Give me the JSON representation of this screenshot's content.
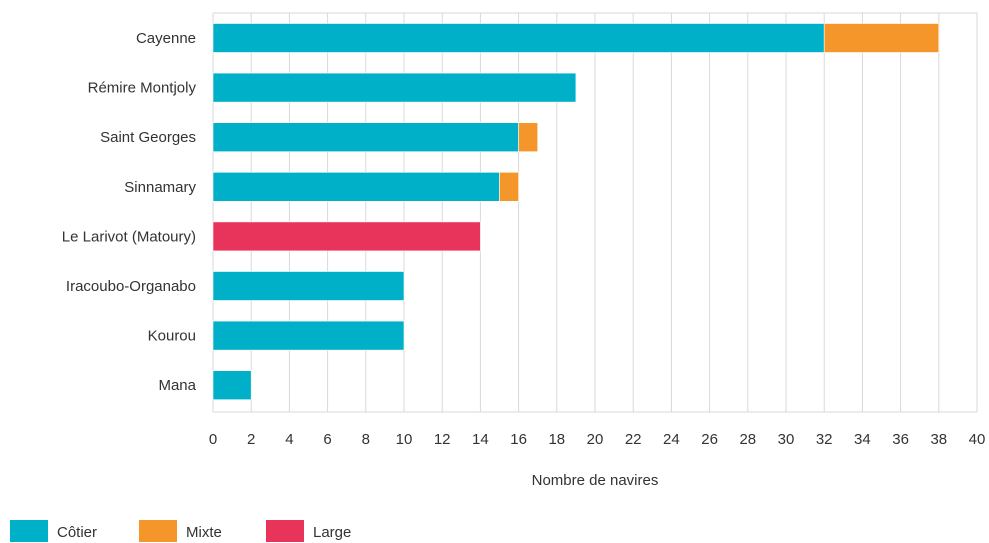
{
  "chart_data": {
    "type": "bar",
    "orientation": "horizontal",
    "stacked": true,
    "categories": [
      "Cayenne",
      "Rémire Montjoly",
      "Saint Georges",
      "Sinnamary",
      "Le Larivot (Matoury)",
      "Iracoubo-Organabo",
      "Kourou",
      "Mana"
    ],
    "series": [
      {
        "name": "Côtier",
        "color": "#00AFC8",
        "values": [
          32,
          19,
          16,
          15,
          0,
          10,
          10,
          2
        ]
      },
      {
        "name": "Mixte",
        "color": "#F5962A",
        "values": [
          6,
          0,
          1,
          1,
          0,
          0,
          0,
          0
        ]
      },
      {
        "name": "Large",
        "color": "#E8345A",
        "values": [
          0,
          0,
          0,
          0,
          14,
          0,
          0,
          0
        ]
      }
    ],
    "xlabel": "Nombre de navires",
    "xlim": [
      0,
      40
    ],
    "xticks": [
      "0",
      "2",
      "4",
      "6",
      "8",
      "10",
      "12",
      "14",
      "16",
      "18",
      "20",
      "22",
      "24",
      "26",
      "28",
      "30",
      "32",
      "34",
      "36",
      "38",
      "40"
    ],
    "grid": "vertical",
    "legend_position": "bottom-left"
  }
}
